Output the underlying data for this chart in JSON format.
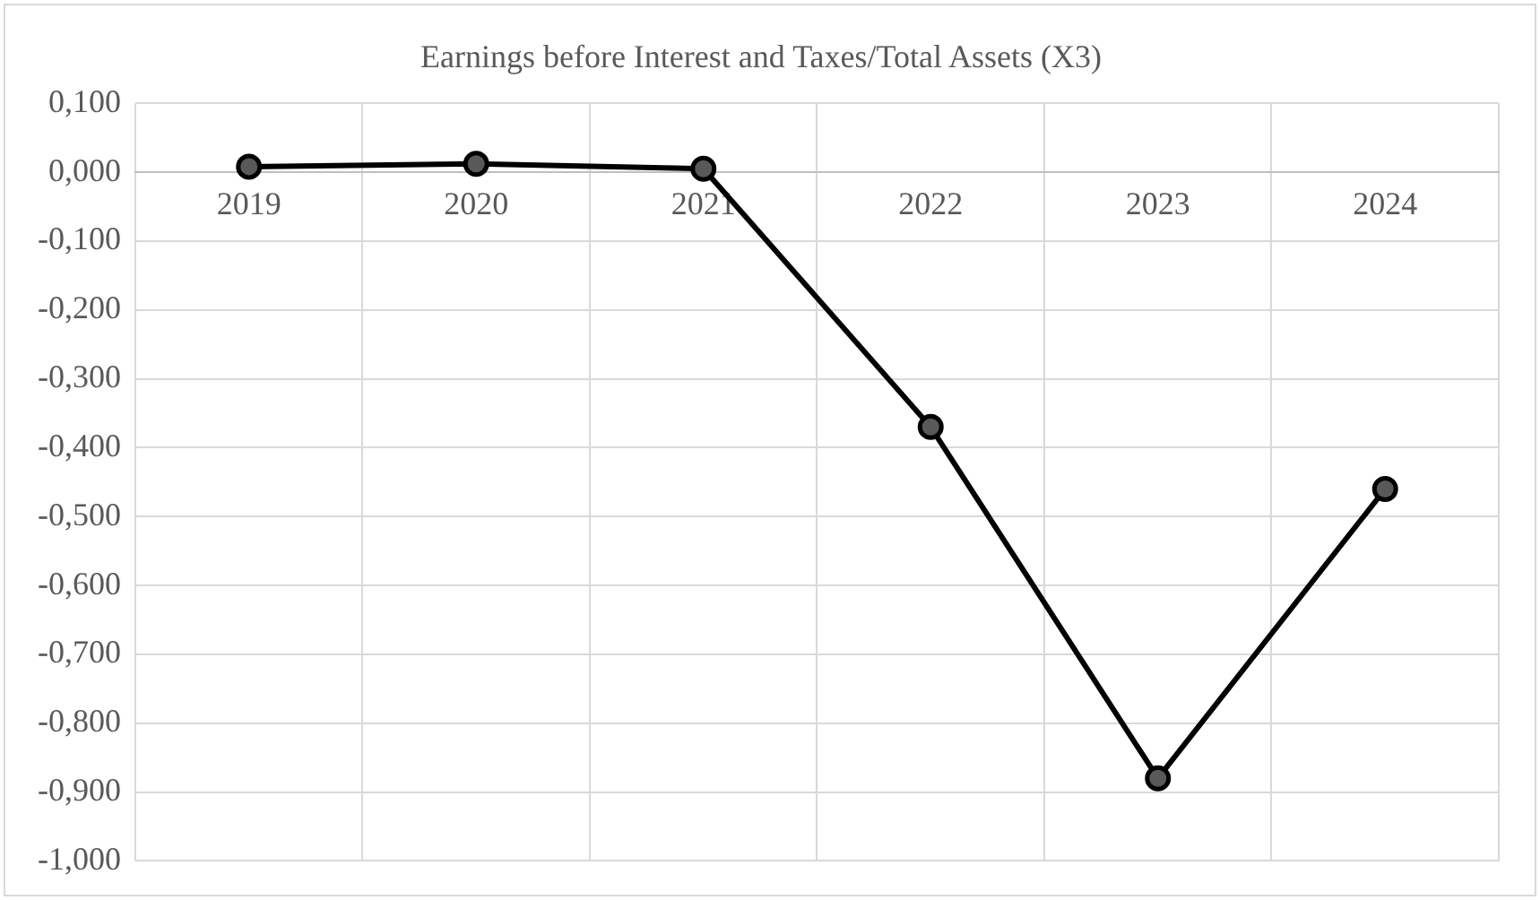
{
  "chart_data": {
    "type": "line",
    "title": "Earnings before Interest and Taxes/Total Assets (X3)",
    "categories": [
      "2019",
      "2020",
      "2021",
      "2022",
      "2023",
      "2024"
    ],
    "series": [
      {
        "color": "#000000",
        "values": [
          0.008,
          0.012,
          0.005,
          -0.37,
          -0.88,
          -0.46
        ]
      }
    ],
    "ylim": [
      -1,
      0.1
    ],
    "yticks": [
      {
        "value": -1,
        "label": "-1,000"
      },
      {
        "value": -0.9,
        "label": "-0,900"
      },
      {
        "value": -0.8,
        "label": "-0,800"
      },
      {
        "value": -0.7,
        "label": "-0,700"
      },
      {
        "value": -0.6,
        "label": "-0,600"
      },
      {
        "value": -0.5,
        "label": "-0,500"
      },
      {
        "value": -0.4,
        "label": "-0,400"
      },
      {
        "value": -0.3,
        "label": "-0,300"
      },
      {
        "value": -0.2,
        "label": "-0,200"
      },
      {
        "value": -0.1,
        "label": "-0,100"
      },
      {
        "value": 0,
        "label": "0,000"
      },
      {
        "value": 0.1,
        "label": "0,100"
      }
    ],
    "grid": true,
    "legend": false,
    "marker": "circle",
    "line_style": "solid"
  }
}
